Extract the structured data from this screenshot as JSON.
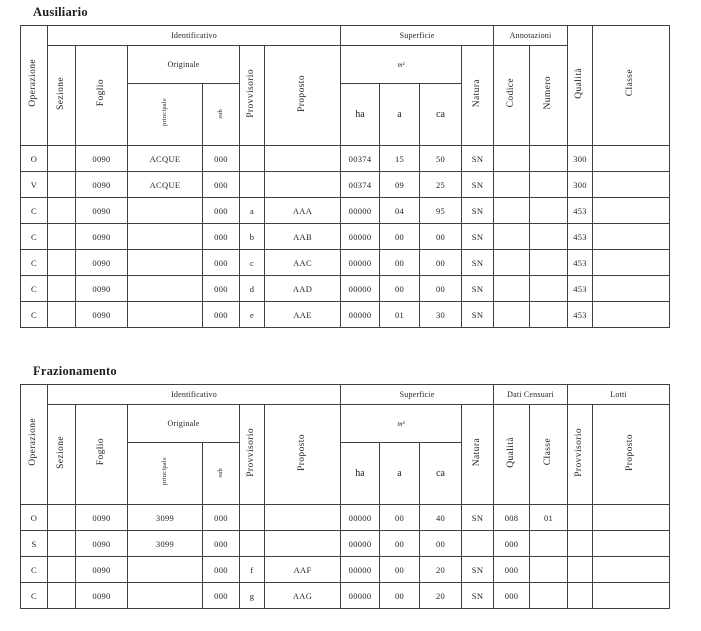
{
  "page": {
    "background": "#ffffff",
    "text_color": "#1f1f1f",
    "border_color": "#3f3f3f"
  },
  "ausiliario": {
    "title": "Ausiliario",
    "headers": {
      "operazione": "Operazione",
      "identificativo": "Identificativo",
      "sezione": "Sezione",
      "foglio": "Foglio",
      "originale": "Originale",
      "principale": "principale",
      "sub": "sub",
      "provvisorio": "Provvisorio",
      "proposto": "Proposto",
      "superficie": "Superficie",
      "metri_quadri": "m²",
      "ha": "ha",
      "a": "a",
      "ca": "ca",
      "natura": "Natura",
      "annotazioni": "Annotazioni",
      "codice": "Codice",
      "numero": "Numero",
      "qualita": "Qualità",
      "classe": "Classe"
    },
    "rows": [
      [
        "O",
        "",
        "0090",
        "ACQUE",
        "000",
        "",
        "",
        "00374",
        "15",
        "50",
        "SN",
        "",
        "",
        "300",
        ""
      ],
      [
        "V",
        "",
        "0090",
        "ACQUE",
        "000",
        "",
        "",
        "00374",
        "09",
        "25",
        "SN",
        "",
        "",
        "300",
        ""
      ],
      [
        "C",
        "",
        "0090",
        "",
        "000",
        "a",
        "AAA",
        "00000",
        "04",
        "95",
        "SN",
        "",
        "",
        "453",
        ""
      ],
      [
        "C",
        "",
        "0090",
        "",
        "000",
        "b",
        "AAB",
        "00000",
        "00",
        "00",
        "SN",
        "",
        "",
        "453",
        ""
      ],
      [
        "C",
        "",
        "0090",
        "",
        "000",
        "c",
        "AAC",
        "00000",
        "00",
        "00",
        "SN",
        "",
        "",
        "453",
        ""
      ],
      [
        "C",
        "",
        "0090",
        "",
        "000",
        "d",
        "AAD",
        "00000",
        "00",
        "00",
        "SN",
        "",
        "",
        "453",
        ""
      ],
      [
        "C",
        "",
        "0090",
        "",
        "000",
        "e",
        "AAE",
        "00000",
        "01",
        "30",
        "SN",
        "",
        "",
        "453",
        ""
      ]
    ]
  },
  "frazionamento": {
    "title": "Frazionamento",
    "headers": {
      "operazione": "Operazione",
      "identificativo": "Identificativo",
      "sezione": "Sezione",
      "foglio": "Foglio",
      "originale": "Originale",
      "principale": "principale",
      "sub": "sub",
      "provvisorio": "Provvisorio",
      "proposto": "Proposto",
      "superficie": "Superficie",
      "metri_quadri": "m²",
      "ha": "ha",
      "a": "a",
      "ca": "ca",
      "natura": "Natura",
      "dati_censuari": "Dati Censuari",
      "qualita": "Qualità",
      "classe": "Classe",
      "lotti": "Lotti",
      "lotti_provvisorio": "Provvisorio",
      "lotti_proposto": "Proposto"
    },
    "rows": [
      [
        "O",
        "",
        "0090",
        "3099",
        "000",
        "",
        "",
        "00000",
        "00",
        "40",
        "SN",
        "008",
        "01",
        "",
        ""
      ],
      [
        "S",
        "",
        "0090",
        "3099",
        "000",
        "",
        "",
        "00000",
        "00",
        "00",
        "",
        "000",
        "",
        "",
        ""
      ],
      [
        "C",
        "",
        "0090",
        "",
        "000",
        "f",
        "AAF",
        "00000",
        "00",
        "20",
        "SN",
        "000",
        "",
        "",
        ""
      ],
      [
        "C",
        "",
        "0090",
        "",
        "000",
        "g",
        "AAG",
        "00000",
        "00",
        "20",
        "SN",
        "000",
        "",
        "",
        ""
      ]
    ]
  }
}
